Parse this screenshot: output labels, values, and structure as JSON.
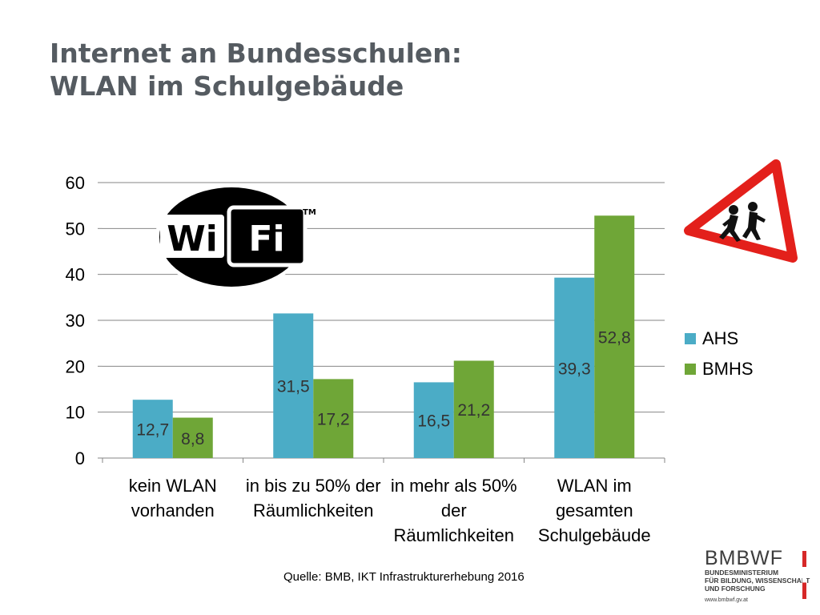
{
  "title": {
    "line1": "Internet an Bundesschulen:",
    "line2": "WLAN im Schulgebäude"
  },
  "chart_data": {
    "type": "bar",
    "categories": [
      [
        "kein WLAN",
        "vorhanden"
      ],
      [
        "in bis zu 50% der",
        "Räumlichkeiten"
      ],
      [
        "in mehr als 50%",
        "der",
        "Räumlichkeiten"
      ],
      [
        "WLAN im",
        "gesamten",
        "Schulgebäude"
      ]
    ],
    "series": [
      {
        "name": "AHS",
        "values": [
          12.7,
          31.5,
          16.5,
          39.3
        ],
        "labels": [
          "12,7",
          "31,5",
          "16,5",
          "39,3"
        ],
        "color": "#4bacc6"
      },
      {
        "name": "BMHS",
        "values": [
          8.8,
          17.2,
          21.2,
          52.8
        ],
        "labels": [
          "8,8",
          "17,2",
          "21,2",
          "52,8"
        ],
        "color": "#6fa637"
      }
    ],
    "ylim": [
      0,
      60
    ],
    "yticks": [
      0,
      10,
      20,
      30,
      40,
      50,
      60
    ],
    "grid": true,
    "legend": "right"
  },
  "wifi_logo": {
    "left": "Wi",
    "right": "Fi",
    "tm": "TM"
  },
  "source": "Quelle: BMB, IKT Infrastrukturerhebung 2016",
  "brand": {
    "name": "BMBWF",
    "line1": "BUNDESMINISTERIUM",
    "line2": "FÜR BILDUNG, WISSENSCHAFT",
    "line3": "UND FORSCHUNG",
    "url": "www.bmbwf.gv.at"
  },
  "colors": {
    "title": "#555b61",
    "ahs": "#4bacc6",
    "bmhs": "#6fa637",
    "sign": "#e3201b"
  },
  "icons": {
    "warning": "children-crossing-warning-sign-icon"
  }
}
